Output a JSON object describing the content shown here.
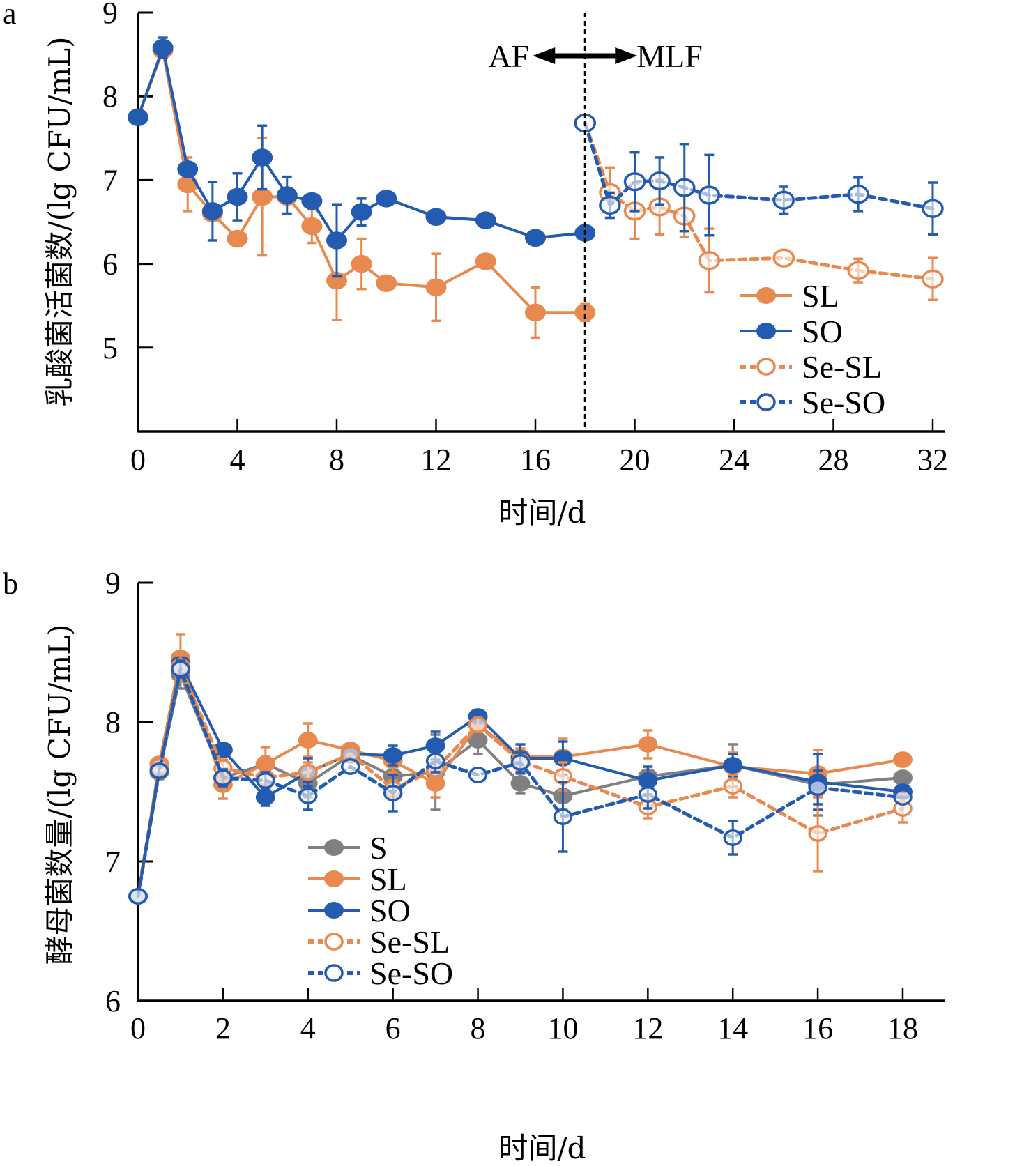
{
  "chart_data": [
    {
      "panel": "a",
      "type": "line",
      "title": "",
      "xlabel": "时间/d",
      "ylabel": "乳酸菌活菌数/(lg CFU/mL)",
      "xlim": [
        0,
        32
      ],
      "ylim": [
        4,
        9
      ],
      "xticks": [
        0,
        4,
        8,
        12,
        16,
        20,
        24,
        28,
        32
      ],
      "yticks": [
        5,
        6,
        7,
        8,
        9
      ],
      "grid": false,
      "legend_position": "bottom-right",
      "annotation": {
        "left": "AF",
        "right": "MLF",
        "divider_x": 18
      },
      "series": [
        {
          "name": "SL",
          "color": "#E8894F",
          "style": "solid",
          "marker": "filled",
          "x": [
            0,
            1,
            2,
            3,
            4,
            5,
            6,
            7,
            8,
            9,
            10,
            12,
            14,
            16,
            18
          ],
          "y": [
            7.75,
            8.55,
            6.95,
            6.6,
            6.3,
            6.8,
            6.8,
            6.45,
            5.8,
            6.0,
            5.77,
            5.72,
            6.03,
            5.42,
            5.42
          ],
          "err": [
            0,
            0.08,
            0.32,
            0,
            0,
            0.7,
            0,
            0.2,
            0.47,
            0.3,
            0,
            0.4,
            0,
            0.3,
            0.1
          ]
        },
        {
          "name": "SO",
          "color": "#235BB0",
          "style": "solid",
          "marker": "filled",
          "x": [
            0,
            1,
            2,
            3,
            4,
            5,
            6,
            7,
            8,
            9,
            10,
            12,
            14,
            16,
            18
          ],
          "y": [
            7.75,
            8.58,
            7.13,
            6.63,
            6.8,
            7.27,
            6.82,
            6.75,
            6.28,
            6.62,
            6.78,
            6.56,
            6.52,
            6.31,
            6.37
          ],
          "err": [
            0,
            0.12,
            0,
            0.35,
            0.28,
            0.38,
            0.22,
            0,
            0.43,
            0.16,
            0,
            0,
            0,
            0.06,
            0.07
          ]
        },
        {
          "name": "Se-SL",
          "color": "#E8894F",
          "style": "dashed",
          "marker": "open",
          "x": [
            18,
            19,
            20,
            21,
            22,
            23,
            26,
            29,
            32
          ],
          "y": [
            7.68,
            6.85,
            6.63,
            6.68,
            6.57,
            6.04,
            6.07,
            5.92,
            5.82
          ],
          "err": [
            0,
            0.3,
            0.33,
            0.33,
            0.25,
            0.38,
            0,
            0.14,
            0.25
          ]
        },
        {
          "name": "Se-SO",
          "color": "#235BB0",
          "style": "dashed",
          "marker": "open",
          "x": [
            18,
            19,
            20,
            21,
            22,
            23,
            26,
            29,
            32
          ],
          "y": [
            7.68,
            6.7,
            6.98,
            6.99,
            6.91,
            6.82,
            6.76,
            6.83,
            6.66
          ],
          "err": [
            0,
            0.15,
            0.35,
            0.28,
            0.52,
            0.48,
            0.16,
            0.2,
            0.31
          ]
        }
      ]
    },
    {
      "panel": "b",
      "type": "line",
      "title": "",
      "xlabel": "时间/d",
      "ylabel": "酵母菌数量/(lg CFU/mL)",
      "xlim": [
        0,
        18.6
      ],
      "ylim": [
        6,
        9
      ],
      "xticks": [
        0,
        2,
        4,
        6,
        8,
        10,
        12,
        14,
        16,
        18
      ],
      "yticks": [
        6,
        7,
        8,
        9
      ],
      "grid": false,
      "legend_position": "bottom-left",
      "series": [
        {
          "name": "S",
          "color": "#808080",
          "style": "solid",
          "marker": "filled",
          "x": [
            0,
            0.5,
            1,
            2,
            3,
            4,
            5,
            6,
            7,
            8,
            9,
            10,
            12,
            14,
            16,
            18
          ],
          "y": [
            6.75,
            7.64,
            8.34,
            7.6,
            7.7,
            7.56,
            7.76,
            7.61,
            7.64,
            7.87,
            7.56,
            7.47,
            7.61,
            7.69,
            7.55,
            7.6
          ],
          "err": [
            0,
            0.05,
            0.1,
            0.07,
            0.05,
            0.1,
            0,
            0.1,
            0.27,
            0.1,
            0.07,
            0.1,
            0,
            0.15,
            0.22,
            0
          ]
        },
        {
          "name": "SL",
          "color": "#E8894F",
          "style": "solid",
          "marker": "filled",
          "x": [
            0,
            0.5,
            1,
            2,
            3,
            4,
            5,
            6,
            7,
            8,
            9,
            10,
            12,
            14,
            16,
            18
          ],
          "y": [
            6.75,
            7.7,
            8.46,
            7.55,
            7.7,
            7.87,
            7.8,
            7.72,
            7.56,
            7.98,
            7.75,
            7.75,
            7.84,
            7.68,
            7.63,
            7.73
          ],
          "err": [
            0,
            0.03,
            0.17,
            0.1,
            0.12,
            0.12,
            0,
            0.08,
            0.1,
            0.05,
            0.06,
            0.13,
            0.1,
            0.1,
            0.17,
            0
          ]
        },
        {
          "name": "SO",
          "color": "#235BB0",
          "style": "solid",
          "marker": "filled",
          "x": [
            0,
            0.5,
            1,
            2,
            3,
            4,
            5,
            6,
            7,
            8,
            9,
            10,
            12,
            14,
            16,
            18
          ],
          "y": [
            6.75,
            7.66,
            8.42,
            7.8,
            7.46,
            7.64,
            7.77,
            7.76,
            7.83,
            8.04,
            7.74,
            7.74,
            7.58,
            7.69,
            7.57,
            7.5
          ],
          "err": [
            0,
            0.04,
            0.05,
            0,
            0.06,
            0.1,
            0,
            0.07,
            0.1,
            0.03,
            0.1,
            0.12,
            0.1,
            0.08,
            0.2,
            0
          ]
        },
        {
          "name": "Se-SL",
          "color": "#E8894F",
          "style": "dashed",
          "marker": "open",
          "x": [
            0,
            0.5,
            1,
            2,
            3,
            4,
            5,
            6,
            7,
            8,
            9,
            10,
            12,
            14,
            16,
            18
          ],
          "y": [
            6.75,
            7.68,
            8.4,
            7.67,
            7.6,
            7.64,
            7.77,
            7.52,
            7.66,
            7.98,
            7.72,
            7.61,
            7.39,
            7.54,
            7.2,
            7.38
          ],
          "err": [
            0,
            0.03,
            0.08,
            0.06,
            0.06,
            0.07,
            0,
            0.06,
            0.06,
            0.05,
            0.06,
            0.1,
            0.08,
            0.08,
            0.27,
            0.1
          ]
        },
        {
          "name": "Se-SO",
          "color": "#235BB0",
          "style": "dashed",
          "marker": "open",
          "x": [
            0,
            0.5,
            1,
            2,
            3,
            4,
            5,
            6,
            7,
            8,
            9,
            10,
            12,
            14,
            16,
            18
          ],
          "y": [
            6.75,
            7.65,
            8.38,
            7.6,
            7.58,
            7.47,
            7.68,
            7.49,
            7.72,
            7.62,
            7.71,
            7.32,
            7.48,
            7.17,
            7.53,
            7.46
          ],
          "err": [
            0,
            0.04,
            0.06,
            0.06,
            0.06,
            0.1,
            0,
            0.13,
            0.08,
            0,
            0.07,
            0.25,
            0.1,
            0.12,
            0.12,
            0
          ]
        }
      ]
    }
  ]
}
